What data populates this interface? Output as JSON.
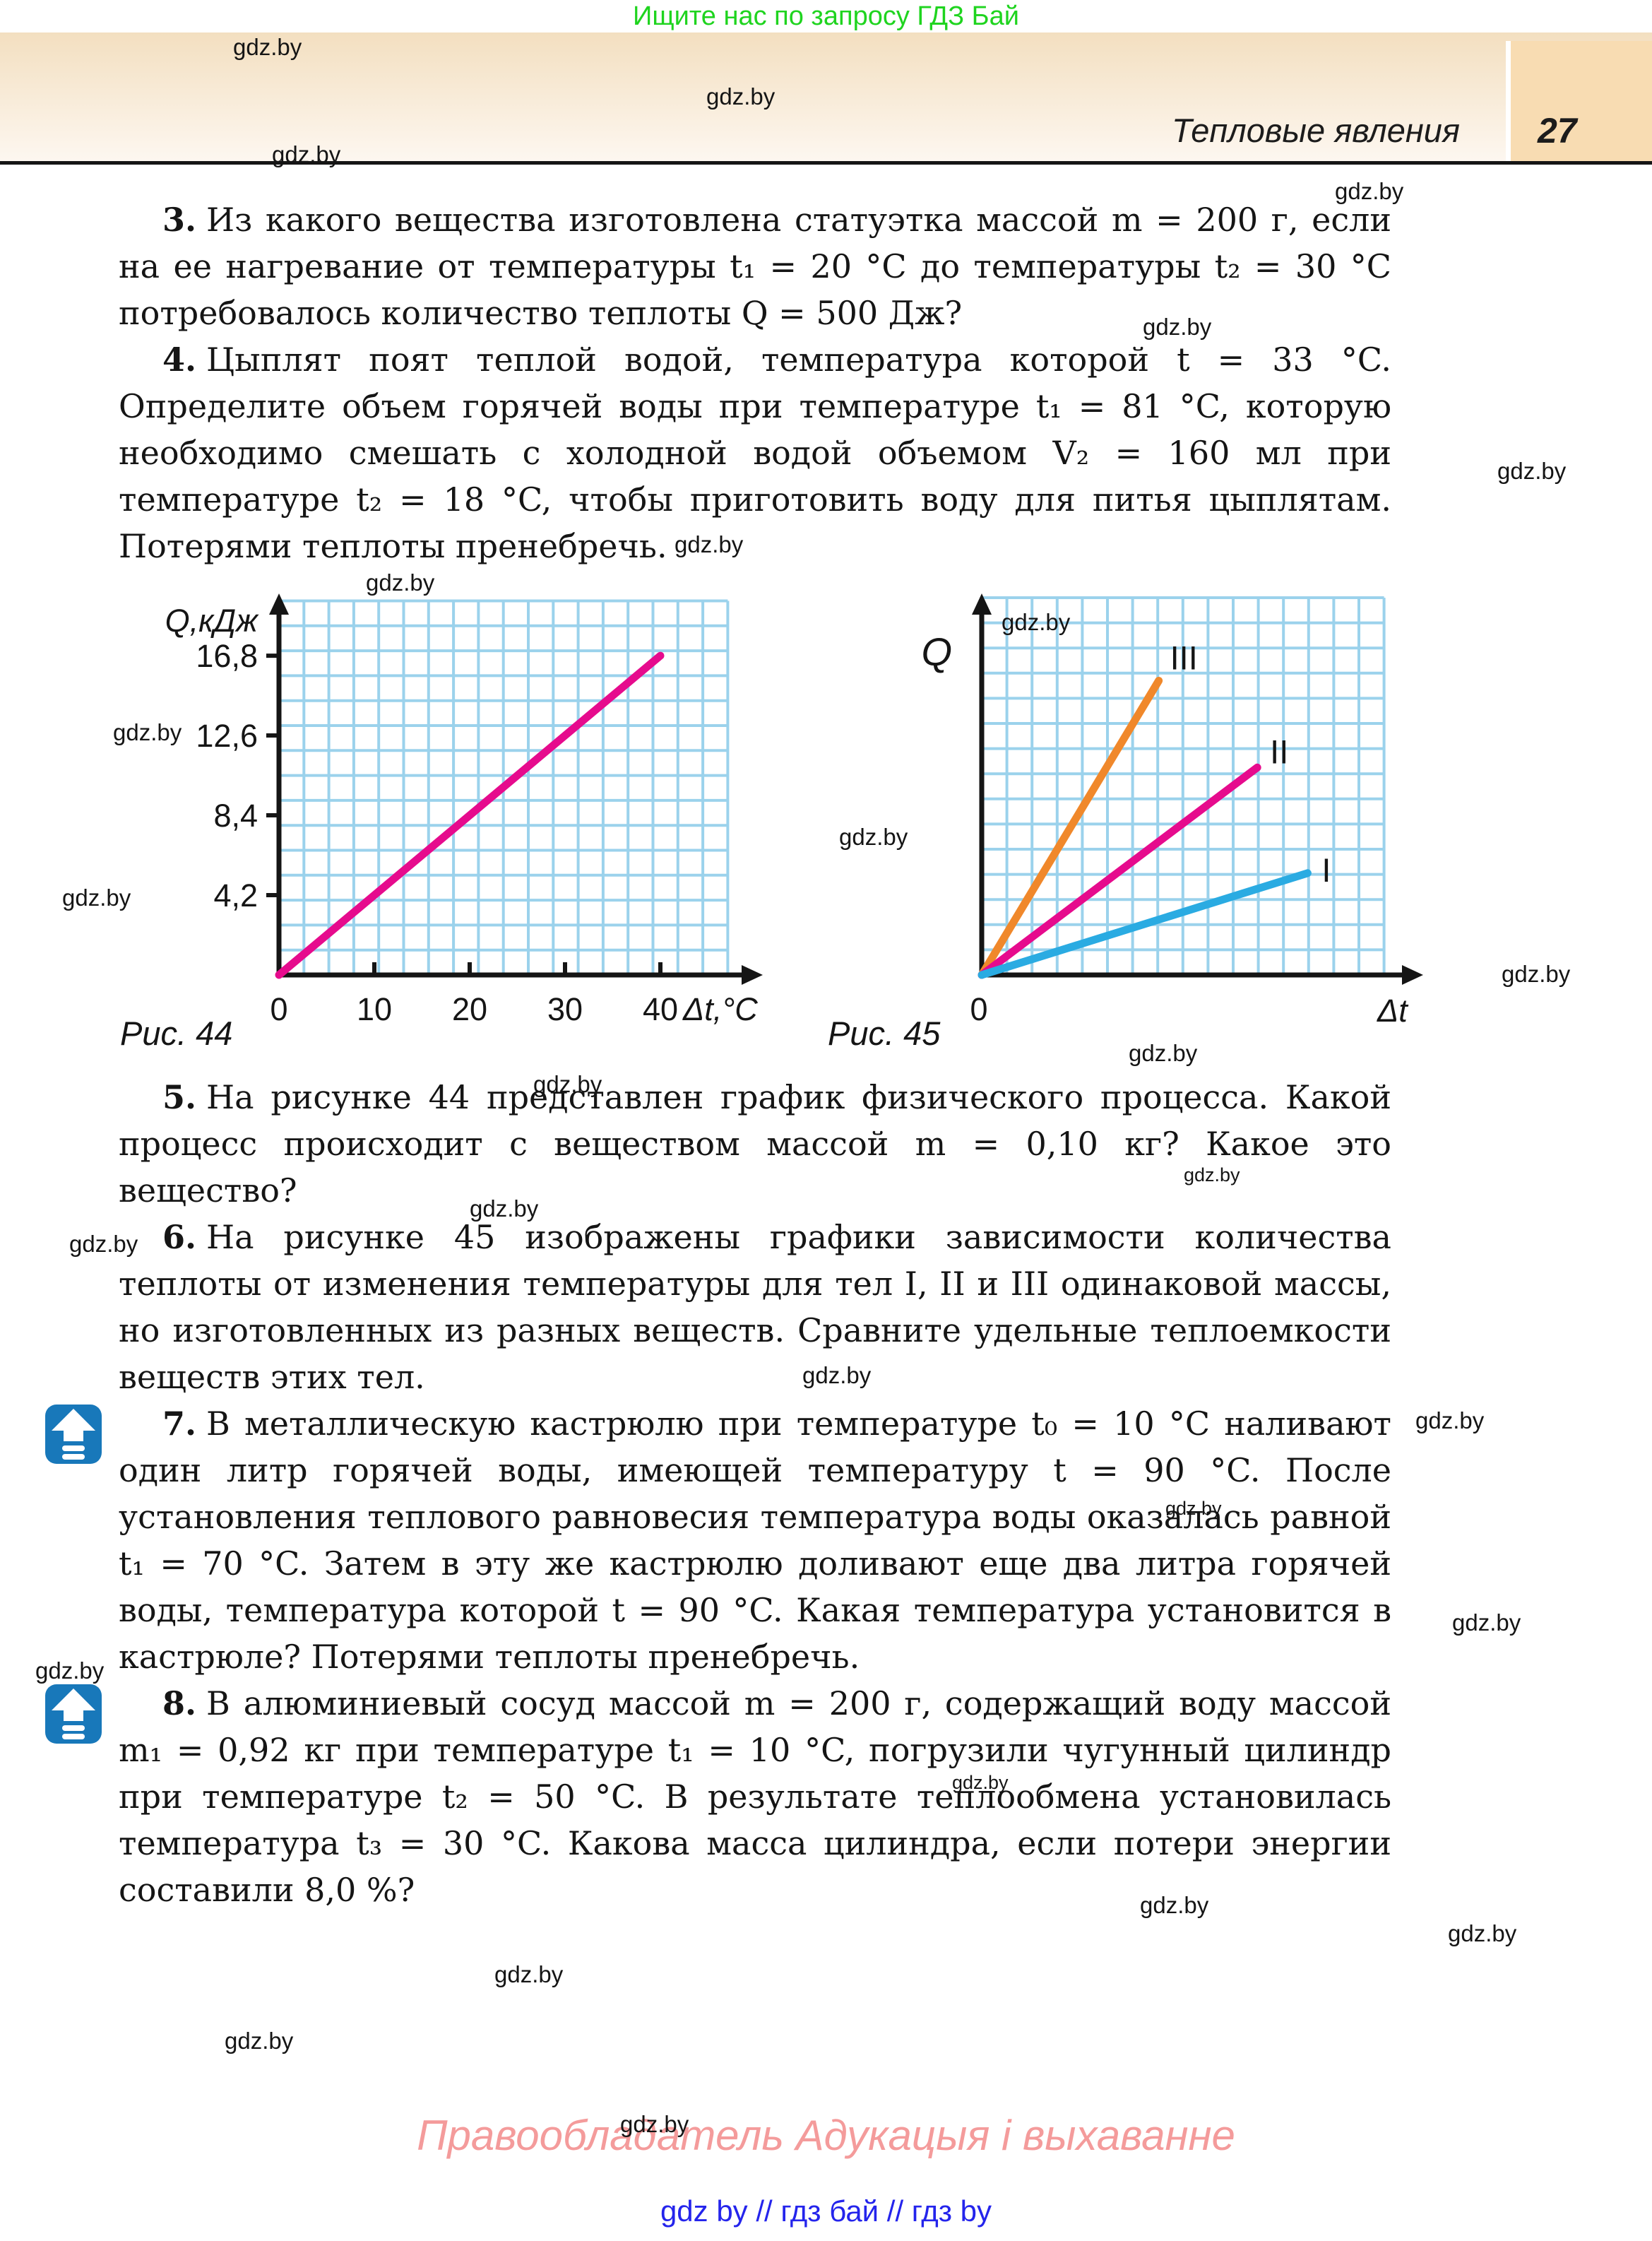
{
  "banner": {
    "text": "Ищите нас по запросу ГДЗ Бай",
    "color": "#1fd41f"
  },
  "header": {
    "section_title": "Тепловые явления",
    "page_number": "27"
  },
  "watermark_text": "gdz.by",
  "problems": [
    {
      "number": "3.",
      "text": "Из какого вещества изготовлена статуэтка массой m = 200 г, если на ее нагревание от температуры t₁ = 20 °C до температуры t₂ = 30 °C потребовалось количество теплоты Q = 500 Дж?"
    },
    {
      "number": "4.",
      "text": "Цыплят поят теплой водой, температура которой t = 33 °C. Определите объем горячей воды при температуре t₁ = 81 °C, которую необходимо смешать с холодной водой объемом V₂ = 160 мл при температуре t₂ = 18 °C, чтобы приготовить воду для питья цыплятам. Потерями теплоты пренебречь."
    },
    {
      "number": "5.",
      "text": "На рисунке 44 представлен график физического процесса. Какой процесс происходит с веществом массой m = 0,10 кг? Какое это вещество?"
    },
    {
      "number": "6.",
      "text": "На рисунке 45 изображены графики зависимости количества теплоты от изменения температуры для тел I, II и III одинаковой массы, но изготовленных из разных веществ. Сравните удельные теплоемкости веществ этих тел."
    },
    {
      "number": "7.",
      "text": "В металлическую кастрюлю при температуре t₀ = 10 °C наливают один литр горячей воды, имеющей температуру t = 90 °C. После установления теплового равновесия температура воды оказалась равной t₁ = 70 °C. Затем в эту же кастрюлю доливают еще два литра горячей воды, температура которой t = 90 °C. Какая температура установится в кастрюле? Потерями теплоты пренебречь."
    },
    {
      "number": "8.",
      "text": "В алюминиевый сосуд массой m = 200 г, содержащий воду массой m₁ = 0,92 кг при температуре t₁ = 10 °C, погрузили чугунный цилиндр при температуре t₂ = 50 °C. В результате теплообмена установилась температура t₃ = 30 °C. Какова масса цилиндра, если потери энергии составили 8,0 %?"
    }
  ],
  "figures": [
    {
      "caption": "Рис. 44"
    },
    {
      "caption": "Рис. 45"
    }
  ],
  "chart_data": [
    {
      "type": "line",
      "figure": "Рис. 44",
      "title": "",
      "ylabel": "Q,кДж",
      "xlabel": "Δt,°C",
      "x_ticks": [
        0,
        10,
        20,
        30,
        40
      ],
      "x_tick_labels": [
        "0",
        "10",
        "20",
        "30",
        "40"
      ],
      "y_tick_values": [
        4.2,
        8.4,
        12.6,
        16.8
      ],
      "y_tick_labels": [
        "4,2",
        "8,4",
        "12,6",
        "16,8"
      ],
      "xlim": [
        0,
        47
      ],
      "ylim": [
        0,
        19.8
      ],
      "grid": true,
      "grid_color": "#9bd2ec",
      "series": [
        {
          "name": "",
          "color": "#e60b8d",
          "points_x": [
            0,
            40
          ],
          "points_y": [
            0,
            16.8
          ]
        }
      ],
      "note": "straight line through origin, Q = 16.8 кДж at Δt = 40 °C (slope 0.42 кДж/°C)"
    },
    {
      "type": "line",
      "figure": "Рис. 45",
      "title": "",
      "ylabel": "Q",
      "xlabel": "Δt",
      "origin_label": "0",
      "grid": true,
      "grid_color": "#9bd2ec",
      "axes_unitless": true,
      "series": [
        {
          "name": "III",
          "color": "#f0882b",
          "points_frac": [
            [
              0,
              0
            ],
            [
              0.44,
              0.78
            ]
          ]
        },
        {
          "name": "II",
          "color": "#e60b8d",
          "points_frac": [
            [
              0,
              0
            ],
            [
              0.685,
              0.55
            ]
          ]
        },
        {
          "name": "I",
          "color": "#2aabe2",
          "points_frac": [
            [
              0,
              0
            ],
            [
              0.81,
              0.27
            ]
          ]
        }
      ],
      "note": "three straight lines from origin; slope III > II > I"
    }
  ],
  "footer": {
    "copyright": "Правообладатель Адукацыя і выхаванне",
    "links_line": "gdz by  //  гдз бай  //  гдз by"
  },
  "colors": {
    "band_top": "#f3dfc0",
    "band_bottom": "#fdf7f0",
    "page_box": "#f8dcb2",
    "grid_blue": "#9bd2ec",
    "line_magenta": "#e60b8d",
    "line_orange": "#f0882b",
    "line_blue": "#2aabe2",
    "marker_blue": "#1878ba",
    "footer_pink": "#f49b9b",
    "footer_blue": "#2424ec",
    "banner_green": "#1fd41f"
  }
}
